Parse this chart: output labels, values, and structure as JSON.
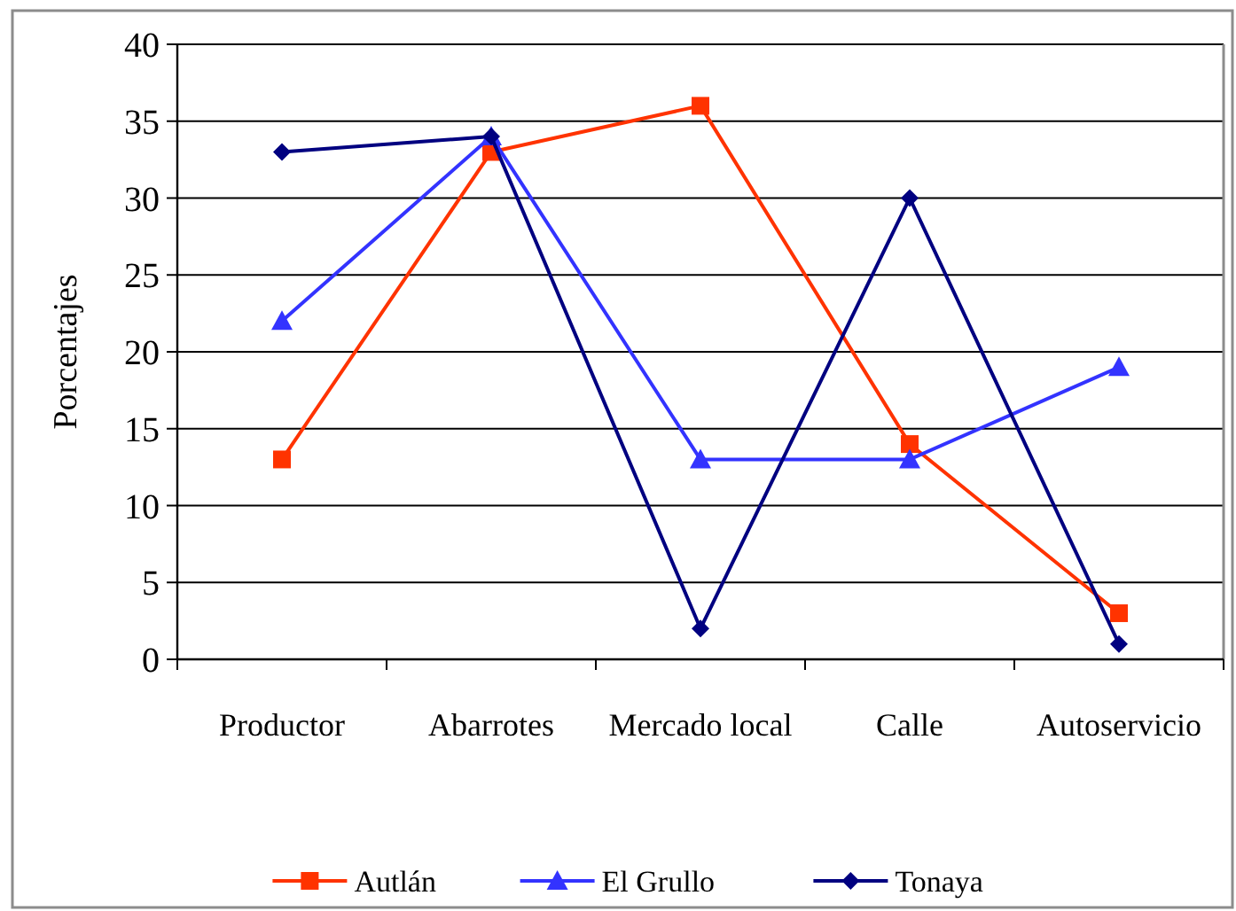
{
  "chart_data": {
    "type": "line",
    "ylabel": "Porcentajes",
    "categories": [
      "Productor",
      "Abarrotes",
      "Mercado local",
      "Calle",
      "Autoservicio"
    ],
    "series": [
      {
        "name": "Autlán",
        "color": "#ff3300",
        "marker": "square",
        "values": [
          13,
          33,
          36,
          14,
          3
        ]
      },
      {
        "name": "El Grullo",
        "color": "#3333ff",
        "marker": "triangle",
        "values": [
          22,
          34,
          13,
          13,
          19
        ]
      },
      {
        "name": "Tonaya",
        "color": "#000080",
        "marker": "diamond",
        "values": [
          33,
          34,
          2,
          30,
          1
        ]
      }
    ],
    "ylim": [
      0,
      40
    ],
    "yticks": [
      0,
      5,
      10,
      15,
      20,
      25,
      30,
      35,
      40
    ],
    "grid": "y",
    "legend": "bottom",
    "line_style": "solid"
  }
}
